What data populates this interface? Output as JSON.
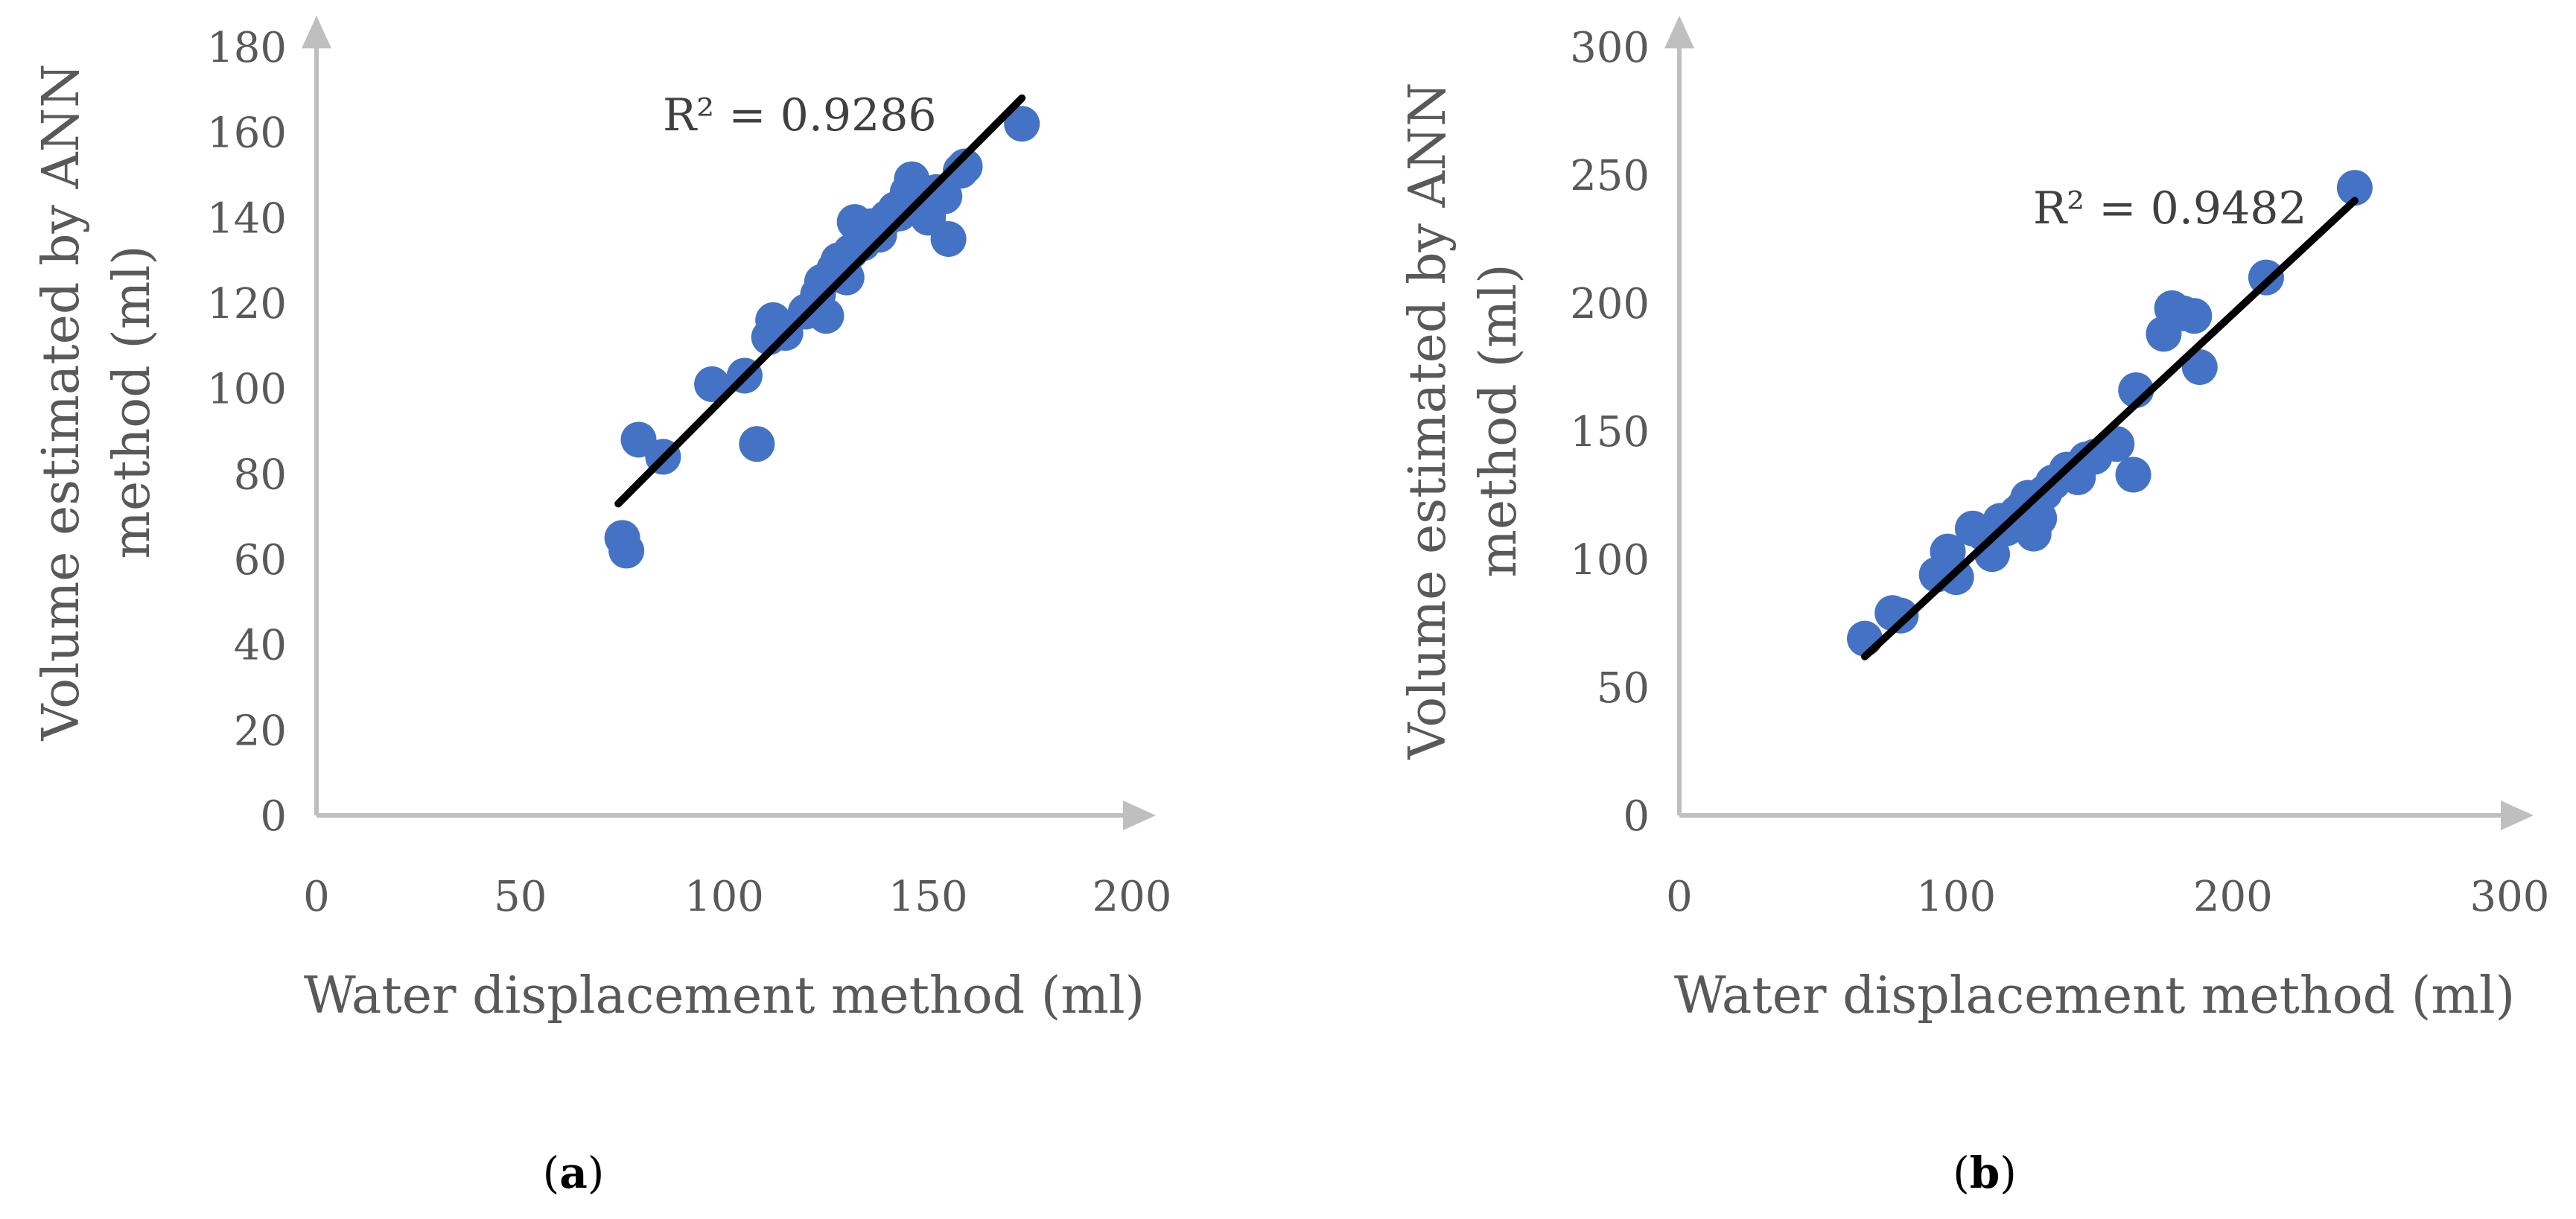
{
  "chart_data": [
    {
      "type": "scatter",
      "caption": {
        "open": "(",
        "letter": "a",
        "close": ")"
      },
      "xlabel": "Water displacement method (ml)",
      "ylabel": [
        "Volume estimated by ANN",
        "method (ml)"
      ],
      "xlim": [
        0,
        200
      ],
      "ylim": [
        0,
        180
      ],
      "xticks": [
        0,
        50,
        100,
        150,
        200
      ],
      "yticks": [
        0,
        20,
        40,
        60,
        80,
        100,
        120,
        140,
        160,
        180
      ],
      "r2_label": "R² = 0.9286",
      "trendline": {
        "x": [
          74,
          173
        ],
        "y": [
          73,
          168
        ]
      },
      "points": [
        [
          75,
          65
        ],
        [
          76,
          62
        ],
        [
          79,
          88
        ],
        [
          85,
          84
        ],
        [
          97,
          101
        ],
        [
          105,
          103
        ],
        [
          108,
          87
        ],
        [
          111,
          112
        ],
        [
          112,
          116
        ],
        [
          115,
          113
        ],
        [
          120,
          118
        ],
        [
          123,
          122
        ],
        [
          124,
          125
        ],
        [
          125,
          117
        ],
        [
          127,
          128
        ],
        [
          128,
          130
        ],
        [
          130,
          126
        ],
        [
          131,
          132
        ],
        [
          132,
          139
        ],
        [
          134,
          134
        ],
        [
          136,
          138
        ],
        [
          138,
          136
        ],
        [
          140,
          140
        ],
        [
          142,
          142
        ],
        [
          143,
          141
        ],
        [
          145,
          146
        ],
        [
          146,
          149
        ],
        [
          148,
          143
        ],
        [
          150,
          140
        ],
        [
          152,
          146
        ],
        [
          154,
          145
        ],
        [
          155,
          135
        ],
        [
          158,
          151
        ],
        [
          159,
          152
        ],
        [
          173,
          162
        ]
      ],
      "marker_color": "#4472C4",
      "line_color": "#000000"
    },
    {
      "type": "scatter",
      "caption": {
        "open": "(",
        "letter": "b",
        "close": ")"
      },
      "xlabel": "Water displacement method (ml)",
      "ylabel": [
        "Volume estimated by ANN",
        "method (ml)"
      ],
      "xlim": [
        0,
        300
      ],
      "ylim": [
        0,
        300
      ],
      "xticks": [
        0,
        100,
        200,
        300
      ],
      "yticks": [
        0,
        50,
        100,
        150,
        200,
        250,
        300
      ],
      "r2_label": "R² = 0.9482",
      "trendline": {
        "x": [
          67,
          244
        ],
        "y": [
          62,
          240
        ]
      },
      "points": [
        [
          67,
          69
        ],
        [
          77,
          79
        ],
        [
          80,
          78
        ],
        [
          93,
          94
        ],
        [
          97,
          103
        ],
        [
          100,
          93
        ],
        [
          106,
          112
        ],
        [
          110,
          110
        ],
        [
          113,
          102
        ],
        [
          116,
          115
        ],
        [
          118,
          112
        ],
        [
          122,
          118
        ],
        [
          124,
          120
        ],
        [
          126,
          124
        ],
        [
          128,
          110
        ],
        [
          130,
          116
        ],
        [
          132,
          126
        ],
        [
          135,
          130
        ],
        [
          140,
          135
        ],
        [
          144,
          132
        ],
        [
          147,
          139
        ],
        [
          150,
          140
        ],
        [
          158,
          145
        ],
        [
          164,
          133
        ],
        [
          165,
          166
        ],
        [
          175,
          188
        ],
        [
          178,
          198
        ],
        [
          182,
          196
        ],
        [
          186,
          195
        ],
        [
          188,
          175
        ],
        [
          212,
          210
        ],
        [
          244,
          245
        ]
      ],
      "marker_color": "#4472C4",
      "line_color": "#000000"
    }
  ]
}
